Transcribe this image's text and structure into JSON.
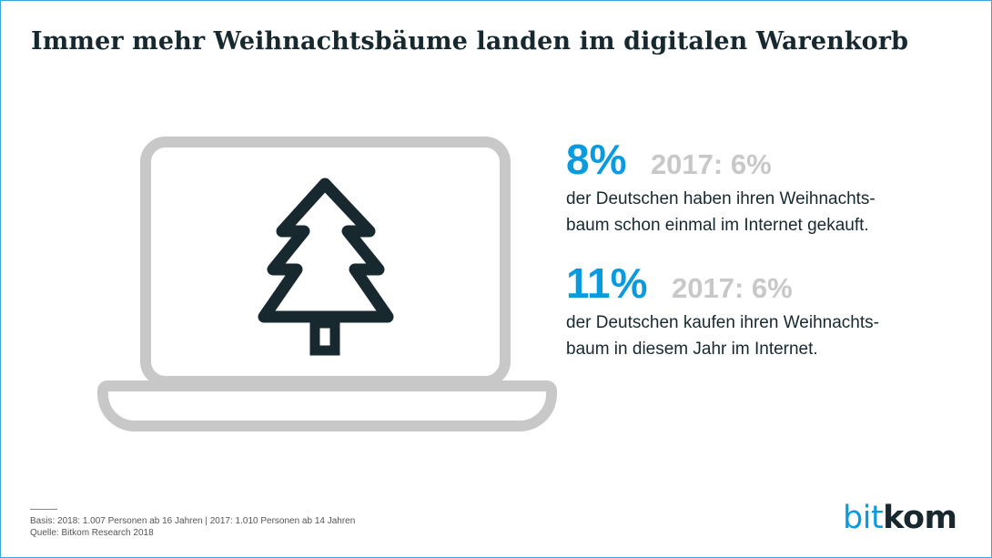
{
  "title": "Immer mehr Weihnachtsbäume landen im digitalen Warenkorb",
  "stats": [
    {
      "value": "8%",
      "previous": "2017: 6%",
      "description_line1": "der Deutschen haben ihren Weihnachts-",
      "description_line2": "baum schon einmal im Internet gekauft."
    },
    {
      "value": "11%",
      "previous": "2017: 6%",
      "description_line1": "der Deutschen kaufen ihren Weihnachts-",
      "description_line2": "baum in diesem Jahr im Internet."
    }
  ],
  "footnote": {
    "basis": "Basis: 2018: 1.007 Personen ab 16 Jahren | 2017: 1.010 Personen ab 14 Jahren",
    "source": "Quelle: Bitkom Research 2018"
  },
  "logo": {
    "part1": "bit",
    "part2": "kom"
  },
  "icons": [
    "laptop-icon",
    "christmas-tree-icon"
  ],
  "colors": {
    "accent": "#0a9adf",
    "text_dark": "#17292f",
    "muted_gray": "#c8c8c8",
    "border": "#3aa6dd"
  }
}
